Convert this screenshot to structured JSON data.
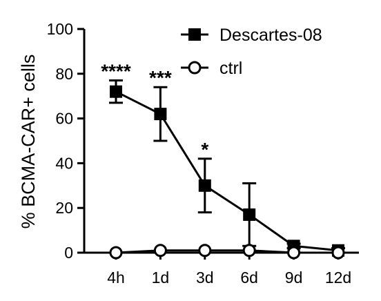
{
  "chart_data": {
    "type": "line",
    "ylabel": "% BCMA-CAR+ cells",
    "xlabel": "",
    "categories": [
      "4h",
      "1d",
      "3d",
      "6d",
      "9d",
      "12d"
    ],
    "ylim": [
      0,
      100
    ],
    "yticks": [
      0,
      20,
      40,
      60,
      80,
      100
    ],
    "grid": false,
    "legend_position": "top-right",
    "series": [
      {
        "name": "Descartes-08",
        "marker": "filled-square",
        "color": "#000000",
        "values": [
          72,
          62,
          30,
          17,
          3,
          1
        ],
        "error_upper": [
          5,
          12,
          12,
          14,
          1,
          1
        ]
      },
      {
        "name": "ctrl",
        "marker": "open-circle",
        "color": "#000000",
        "values": [
          0,
          1,
          1,
          1,
          0,
          0
        ]
      }
    ],
    "annotations": [
      {
        "category": "4h",
        "text": "****"
      },
      {
        "category": "1d",
        "text": "***"
      },
      {
        "category": "3d",
        "text": "*"
      }
    ]
  }
}
